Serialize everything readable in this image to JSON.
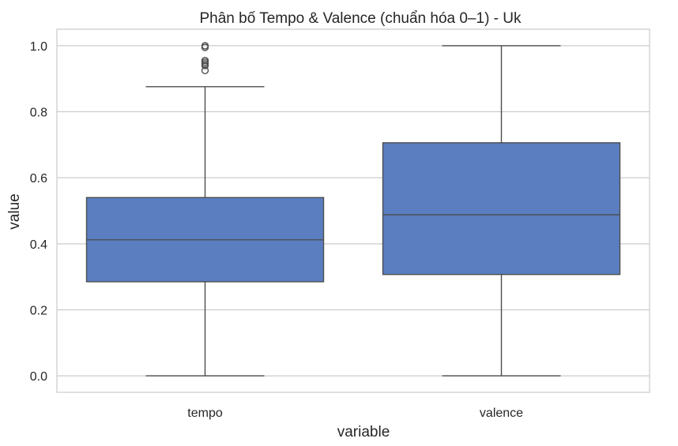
{
  "chart_data": {
    "type": "box",
    "title": "Phân bố Tempo & Valence (chuẩn hóa 0–1) - Uk",
    "xlabel": "variable",
    "ylabel": "value",
    "ylim": [
      -0.05,
      1.05
    ],
    "yticks": [
      0.0,
      0.2,
      0.4,
      0.6,
      0.8,
      1.0
    ],
    "ytick_labels": [
      "0.0",
      "0.2",
      "0.4",
      "0.6",
      "0.8",
      "1.0"
    ],
    "grid": true,
    "categories": [
      "tempo",
      "valence"
    ],
    "boxes": [
      {
        "name": "tempo",
        "whisker_low": 0.0,
        "q1": 0.285,
        "median": 0.412,
        "q3": 0.54,
        "whisker_high": 0.876,
        "outliers": [
          0.925,
          0.94,
          0.945,
          0.95,
          0.955,
          0.995,
          1.0
        ]
      },
      {
        "name": "valence",
        "whisker_low": 0.0,
        "q1": 0.307,
        "median": 0.488,
        "q3": 0.706,
        "whisker_high": 1.0,
        "outliers": []
      }
    ],
    "colors": {
      "box_fill": "#5a7ec0",
      "line": "#4d4d4d",
      "grid": "#cccccc",
      "text": "#262626"
    }
  }
}
